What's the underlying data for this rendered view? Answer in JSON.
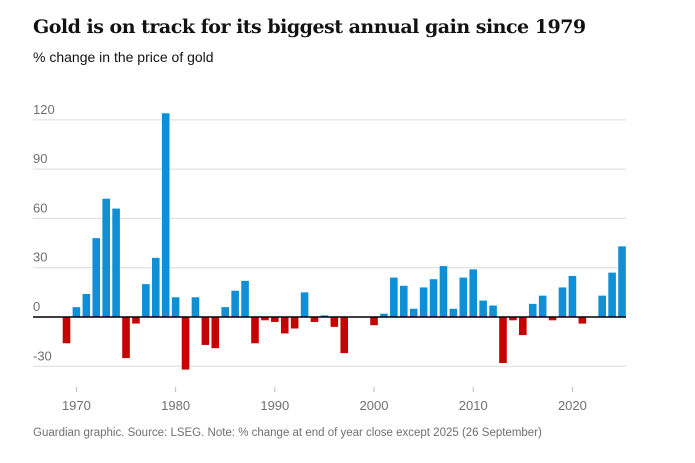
{
  "chart_data": {
    "type": "bar",
    "title": "Gold is on track for its biggest annual gain since 1979",
    "subtitle": "% change in the price of gold",
    "source": "Guardian graphic. Source: LSEG. Note: % change at end of year close except 2025 (26 September)",
    "xlabel": "",
    "ylabel": "",
    "ylim": [
      -30,
      120
    ],
    "yticks": [
      -30,
      0,
      30,
      60,
      90,
      120
    ],
    "xticks": [
      1970,
      1980,
      1990,
      2000,
      2010,
      2020
    ],
    "grid": true,
    "colors": {
      "positive": "#0f8fd6",
      "negative": "#c70000",
      "grid": "#dcdcdc",
      "axis": "#000000"
    },
    "categories": [
      1969,
      1970,
      1971,
      1972,
      1973,
      1974,
      1975,
      1976,
      1977,
      1978,
      1979,
      1980,
      1981,
      1982,
      1983,
      1984,
      1985,
      1986,
      1987,
      1988,
      1989,
      1990,
      1991,
      1992,
      1993,
      1994,
      1995,
      1996,
      1997,
      1998,
      1999,
      2000,
      2001,
      2002,
      2003,
      2004,
      2005,
      2006,
      2007,
      2008,
      2009,
      2010,
      2011,
      2012,
      2013,
      2014,
      2015,
      2016,
      2017,
      2018,
      2019,
      2020,
      2021,
      2022,
      2023,
      2024,
      2025
    ],
    "values": [
      -16,
      6,
      14,
      48,
      72,
      66,
      -25,
      -4,
      20,
      36,
      124,
      12,
      -32,
      12,
      -17,
      -19,
      6,
      16,
      22,
      -16,
      -2,
      -3,
      -10,
      -7,
      15,
      -3,
      1,
      -6,
      -22,
      0,
      0,
      -5,
      2,
      24,
      19,
      5,
      18,
      23,
      31,
      5,
      24,
      29,
      10,
      7,
      -28,
      -2,
      -11,
      8,
      13,
      -2,
      18,
      25,
      -4,
      0,
      13,
      27,
      43
    ]
  }
}
